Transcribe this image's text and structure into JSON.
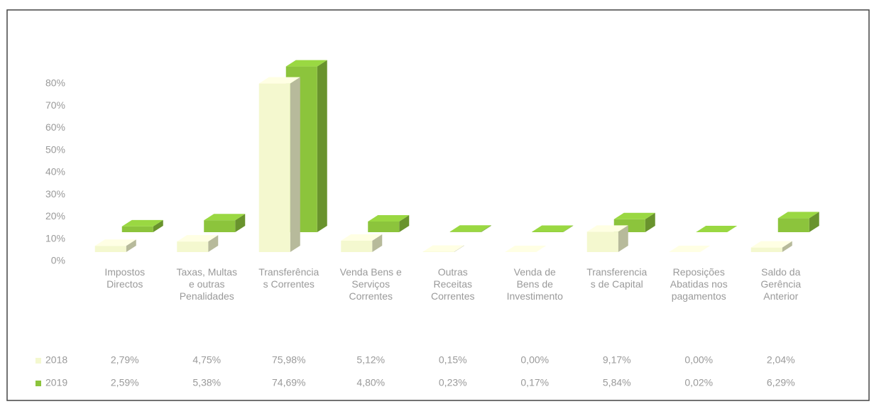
{
  "chart_data": {
    "type": "bar3d",
    "categories": [
      "Impostos Directos",
      "Taxas, Multas e outras Penalidades",
      "Transferências Correntes",
      "Venda Bens e Serviços Correntes",
      "Outras Receitas Correntes",
      "Venda de Bens de Investimento",
      "Transferencias de Capital",
      "Reposições Abatidas nos pagamentos",
      "Saldo da Gerência Anterior"
    ],
    "series": [
      {
        "name": "2018",
        "color": "#f4f8cf",
        "values": [
          2.79,
          4.75,
          75.98,
          5.12,
          0.15,
          0.0,
          9.17,
          0.0,
          2.04
        ],
        "value_labels": [
          "2,79%",
          "4,75%",
          "75,98%",
          "5,12%",
          "0,15%",
          "0,00%",
          "9,17%",
          "0,00%",
          "2,04%"
        ]
      },
      {
        "name": "2019",
        "color": "#8cc43c",
        "values": [
          2.59,
          5.38,
          74.69,
          4.8,
          0.23,
          0.17,
          5.84,
          0.02,
          6.29
        ],
        "value_labels": [
          "2,59%",
          "5,38%",
          "74,69%",
          "4,80%",
          "0,23%",
          "0,17%",
          "5,84%",
          "0,02%",
          "6,29%"
        ]
      }
    ],
    "ylim": [
      0,
      80
    ],
    "yticks": [
      {
        "value": 0,
        "label": "0%"
      },
      {
        "value": 10,
        "label": "10%"
      },
      {
        "value": 20,
        "label": "20%"
      },
      {
        "value": 30,
        "label": "30%"
      },
      {
        "value": 40,
        "label": "40%"
      },
      {
        "value": 50,
        "label": "50%"
      },
      {
        "value": 60,
        "label": "60%"
      },
      {
        "value": 70,
        "label": "70%"
      },
      {
        "value": 80,
        "label": "80%"
      }
    ]
  }
}
